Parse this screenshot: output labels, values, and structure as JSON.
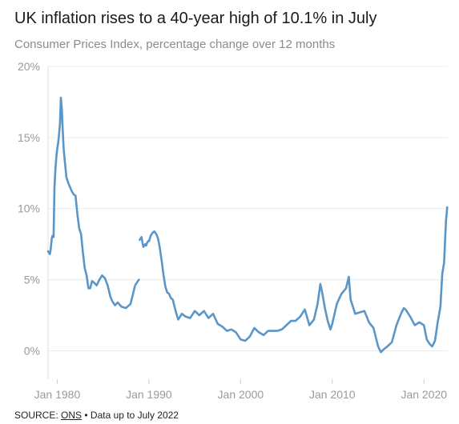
{
  "header": {
    "title": "UK inflation rises to a 40-year high of 10.1% in July",
    "subtitle": "Consumer Prices Index, percentage change over 12 months"
  },
  "footer": {
    "source_prefix": "SOURCE: ",
    "source_name": "ONS",
    "separator": " • ",
    "note": "Data up to July 2022"
  },
  "chart_data": {
    "type": "line",
    "title": "UK inflation rises to a 40-year high of 10.1% in July",
    "subtitle": "Consumer Prices Index, percentage change over 12 months",
    "xlabel": "",
    "ylabel": "",
    "xlim": [
      1979.0,
      2022.6
    ],
    "ylim": [
      -2,
      20
    ],
    "y_ticks": [
      0,
      5,
      10,
      15,
      20
    ],
    "y_tick_labels": [
      "0%",
      "5%",
      "10%",
      "15%",
      "20%"
    ],
    "x_ticks": [
      1980,
      1990,
      2000,
      2010,
      2020
    ],
    "x_tick_labels": [
      "Jan 1980",
      "Jan 1990",
      "Jan 2000",
      "Jan 2010",
      "Jan 2020"
    ],
    "grid": "horizontal",
    "line_color": "#5a96c8",
    "series": [
      {
        "x": [
          1989.0,
          1989.1,
          1989.2,
          1989.3,
          1989.4,
          1989.5,
          1989.6,
          1989.7,
          1989.8,
          1989.9,
          1990.0,
          1990.2,
          1990.4,
          1990.6,
          1990.8,
          1991.0,
          1991.2,
          1991.4,
          1991.6,
          1991.8,
          1992.0,
          1992.2,
          1992.4,
          1992.6,
          1992.8,
          1993.0,
          1993.2,
          1993.4,
          1993.6,
          1993.8,
          1994.0,
          1994.5,
          1995.0,
          1995.5,
          1996.0,
          1996.5,
          1997.0,
          1997.5,
          1998.0,
          1998.5,
          1999.0,
          1999.5,
          2000.0,
          2000.5,
          2001.0,
          2001.5,
          2002.0,
          2002.5,
          2003.0,
          2003.5,
          2004.0,
          2004.5,
          2005.0,
          2005.5,
          2006.0,
          2006.5,
          2007.0,
          2007.5,
          2008.0,
          2008.4,
          2008.7,
          2008.9,
          2009.2,
          2009.5,
          2009.8,
          2010.0,
          2010.5,
          2011.0,
          2011.5,
          2011.8,
          2012.0,
          2012.5,
          2013.0,
          2013.5,
          2014.0,
          2014.5,
          2015.0,
          2015.3,
          2015.6,
          2016.0,
          2016.5,
          2017.0,
          2017.5,
          2017.8,
          2018.0,
          2018.5,
          2019.0,
          2019.5,
          2020.0,
          2020.3,
          2020.6,
          2020.9,
          2021.2,
          2021.5,
          2021.8,
          2022.0,
          2022.2,
          2022.4,
          2022.54
        ],
        "y": [
          7.8,
          7.9,
          8.0,
          7.6,
          7.3,
          7.4,
          7.5,
          7.4,
          7.6,
          7.7,
          7.7,
          8.1,
          8.3,
          8.4,
          8.2,
          7.9,
          7.2,
          6.3,
          5.3,
          4.5,
          4.1,
          4.0,
          3.7,
          3.6,
          3.1,
          2.6,
          2.2,
          2.4,
          2.6,
          2.5,
          2.4,
          2.3,
          2.8,
          2.5,
          2.8,
          2.3,
          2.6,
          1.9,
          1.7,
          1.4,
          1.5,
          1.3,
          0.8,
          0.7,
          1.0,
          1.6,
          1.3,
          1.1,
          1.4,
          1.4,
          1.4,
          1.5,
          1.8,
          2.1,
          2.1,
          2.4,
          2.9,
          1.8,
          2.2,
          3.3,
          4.7,
          4.1,
          3.0,
          2.1,
          1.5,
          1.9,
          3.3,
          4.0,
          4.4,
          5.2,
          3.6,
          2.6,
          2.7,
          2.8,
          2.0,
          1.6,
          0.3,
          -0.1,
          0.1,
          0.3,
          0.6,
          1.8,
          2.6,
          3.0,
          2.9,
          2.4,
          1.8,
          2.0,
          1.8,
          0.8,
          0.5,
          0.3,
          0.7,
          2.0,
          3.1,
          5.4,
          6.2,
          9.1,
          10.1
        ]
      },
      {
        "x": [
          1979.0,
          1979.1,
          1979.2,
          1979.3,
          1979.4,
          1979.5,
          1979.6,
          1979.7,
          1979.8,
          1979.9,
          1980.0,
          1980.1,
          1980.2,
          1980.3,
          1980.4,
          1980.5,
          1980.6,
          1980.7,
          1980.8,
          1980.9,
          1981.0,
          1981.2,
          1981.4,
          1981.6,
          1981.8,
          1982.0,
          1982.2,
          1982.4,
          1982.6,
          1982.8,
          1983.0,
          1983.2,
          1983.4,
          1983.6,
          1983.8,
          1984.0,
          1984.3,
          1984.6,
          1984.9,
          1985.2,
          1985.5,
          1985.8,
          1986.0,
          1986.3,
          1986.6,
          1987.0,
          1987.5,
          1988.0,
          1988.5,
          1988.9
        ],
        "y": [
          7.0,
          6.9,
          6.8,
          7.2,
          7.9,
          8.1,
          8.0,
          11.5,
          12.8,
          13.6,
          14.2,
          14.6,
          15.2,
          16.0,
          17.8,
          17.0,
          15.5,
          14.2,
          13.5,
          12.9,
          12.2,
          11.8,
          11.5,
          11.2,
          11.0,
          10.9,
          9.6,
          8.6,
          8.2,
          6.9,
          5.8,
          5.3,
          4.4,
          4.4,
          4.9,
          4.8,
          4.6,
          5.0,
          5.3,
          5.1,
          4.6,
          3.8,
          3.5,
          3.2,
          3.4,
          3.1,
          3.0,
          3.3,
          4.6,
          5.0
        ]
      }
    ]
  }
}
